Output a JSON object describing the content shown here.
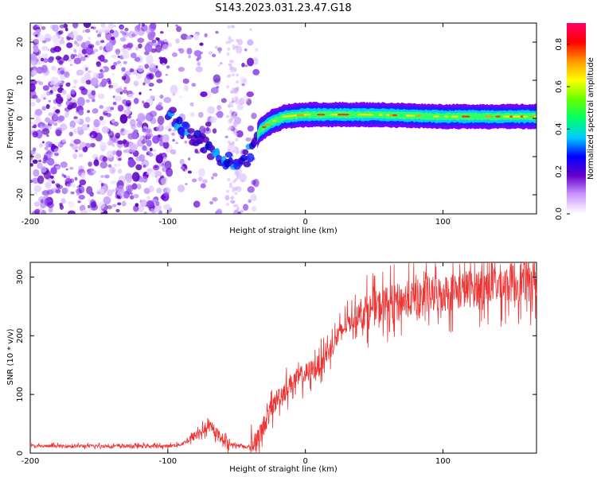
{
  "title": "S143.2023.031.23.47.G18",
  "chart_data": [
    {
      "type": "heatmap",
      "xlabel": "Height of straight line (km)",
      "ylabel": "Frequency (Hz)",
      "xlim": [
        -200,
        168
      ],
      "ylim": [
        -25,
        25
      ],
      "xticks": [
        -200,
        -100,
        0,
        100
      ],
      "yticks": [
        -20,
        -10,
        0,
        10,
        20
      ],
      "colorbar": {
        "label": "Normalized spectral amplitude",
        "range": [
          0,
          0.9
        ],
        "ticks": [
          0.0,
          0.2,
          0.4,
          0.6,
          0.8
        ],
        "colors": [
          "#ffffff",
          "#cc99ff",
          "#6600cc",
          "#0000ff",
          "#00ccff",
          "#00ff66",
          "#66ff00",
          "#ffff00",
          "#ff9900",
          "#ff0000",
          "#ff0066"
        ]
      },
      "ridge": [
        {
          "x": -100,
          "f": 2
        },
        {
          "x": -90,
          "f": -2
        },
        {
          "x": -80,
          "f": -5
        },
        {
          "x": -70,
          "f": -8
        },
        {
          "x": -60,
          "f": -10
        },
        {
          "x": -50,
          "f": -11
        },
        {
          "x": -42,
          "f": -10
        },
        {
          "x": -37,
          "f": -6
        },
        {
          "x": -33,
          "f": -3
        },
        {
          "x": -25,
          "f": -1
        },
        {
          "x": -15,
          "f": 0.5
        },
        {
          "x": 0,
          "f": 1
        },
        {
          "x": 50,
          "f": 1
        },
        {
          "x": 100,
          "f": 0.5
        },
        {
          "x": 168,
          "f": 0.5
        }
      ]
    },
    {
      "type": "line",
      "xlabel": "Height of straight line (km)",
      "ylabel": "SNR (10 * v/v)",
      "xlim": [
        -200,
        168
      ],
      "ylim": [
        0,
        325
      ],
      "xticks": [
        -200,
        -100,
        0,
        100
      ],
      "yticks": [
        0,
        100,
        200,
        300
      ],
      "color": "#ee3333",
      "trend": [
        {
          "x": -200,
          "y": 12
        },
        {
          "x": -150,
          "y": 12
        },
        {
          "x": -100,
          "y": 12
        },
        {
          "x": -90,
          "y": 15
        },
        {
          "x": -80,
          "y": 30
        },
        {
          "x": -70,
          "y": 45
        },
        {
          "x": -65,
          "y": 35
        },
        {
          "x": -55,
          "y": 15
        },
        {
          "x": -40,
          "y": 10
        },
        {
          "x": -33,
          "y": 30
        },
        {
          "x": -28,
          "y": 60
        },
        {
          "x": -20,
          "y": 95
        },
        {
          "x": -10,
          "y": 120
        },
        {
          "x": 0,
          "y": 135
        },
        {
          "x": 10,
          "y": 150
        },
        {
          "x": 20,
          "y": 185
        },
        {
          "x": 30,
          "y": 220
        },
        {
          "x": 40,
          "y": 238
        },
        {
          "x": 60,
          "y": 255
        },
        {
          "x": 80,
          "y": 265
        },
        {
          "x": 100,
          "y": 272
        },
        {
          "x": 130,
          "y": 285
        },
        {
          "x": 168,
          "y": 295
        }
      ]
    }
  ]
}
